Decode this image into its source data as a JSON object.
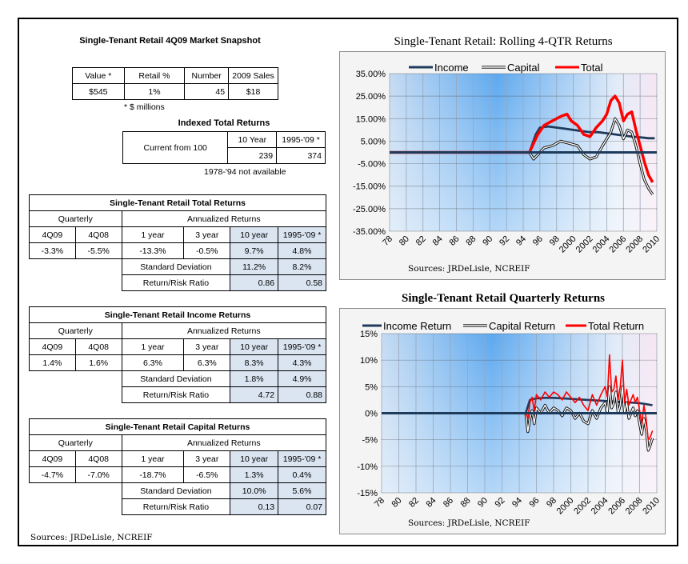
{
  "snapshot": {
    "title": "Single-Tenant Retail 4Q09 Market Snapshot",
    "headers": [
      "Value *",
      "Retail %",
      "Number",
      "2009 Sales"
    ],
    "values": [
      "$545",
      "1%",
      "45",
      "$18"
    ],
    "footnote": "* $ millions"
  },
  "indexed": {
    "title": "Indexed Total Returns",
    "label": "Current from 100",
    "headers": [
      "10 Year",
      "1995-'09 *"
    ],
    "values": [
      "239",
      "374"
    ],
    "note": "1978-'94 not available"
  },
  "returns_tables": [
    {
      "title": "Single-Tenant Retail Total Returns",
      "quarterly_label": "Quarterly",
      "annualized_label": "Annualized Returns",
      "period_headers": [
        "4Q09",
        "4Q08",
        "1 year",
        "3 year",
        "10 year",
        "1995-'09 *"
      ],
      "period_values": [
        "-3.3%",
        "-5.5%",
        "-13.3%",
        "-0.5%",
        "9.7%",
        "4.8%"
      ],
      "std_label": "Standard Deviation",
      "std_values": [
        "11.2%",
        "8.2%"
      ],
      "ratio_label": "Return/Risk Ratio",
      "ratio_values": [
        "0.86",
        "0.58"
      ]
    },
    {
      "title": "Single-Tenant Retail Income Returns",
      "quarterly_label": "Quarterly",
      "annualized_label": "Annualized Returns",
      "period_headers": [
        "4Q09",
        "4Q08",
        "1 year",
        "3 year",
        "10 year",
        "1995-'09 *"
      ],
      "period_values": [
        "1.4%",
        "1.6%",
        "6.3%",
        "6.3%",
        "8.3%",
        "4.3%"
      ],
      "std_label": "Standard Deviation",
      "std_values": [
        "1.8%",
        "4.9%"
      ],
      "ratio_label": "Return/Risk Ratio",
      "ratio_values": [
        "4.72",
        "0.88"
      ]
    },
    {
      "title": "Single-Tenant Retail Capital Returns",
      "quarterly_label": "Quarterly",
      "annualized_label": "Annualized Returns",
      "period_headers": [
        "4Q09",
        "4Q08",
        "1 year",
        "3 year",
        "10 year",
        "1995-'09 *"
      ],
      "period_values": [
        "-4.7%",
        "-7.0%",
        "-18.7%",
        "-6.5%",
        "1.3%",
        "0.4%"
      ],
      "std_label": "Standard Deviation",
      "std_values": [
        "10.0%",
        "5.6%"
      ],
      "ratio_label": "Return/Risk Ratio",
      "ratio_values": [
        "0.13",
        "0.07"
      ]
    }
  ],
  "sources": "Sources: JRDeLisle, NCREIF",
  "colors": {
    "income": "#1f3b5c",
    "capital": "#000000",
    "total": "#ff0000"
  },
  "chart_data": [
    {
      "type": "line",
      "title": "Single-Tenant Retail:  Rolling 4-QTR Returns",
      "source": "Sources: JRDeLisle, NCREIF",
      "x_tick_labels": [
        "78",
        "80",
        "82",
        "84",
        "86",
        "88",
        "90",
        "92",
        "94",
        "96",
        "98",
        "2000",
        "2002",
        "2004",
        "2006",
        "2008",
        "2010"
      ],
      "y_tick_labels": [
        "35.00%",
        "25.00%",
        "15.00%",
        "5.00%",
        "-5.00%",
        "-15.00%",
        "-25.00%",
        "-35.00%"
      ],
      "xlim": [
        1978,
        2010
      ],
      "ylim": [
        -35,
        35
      ],
      "legend": "top",
      "grid": true,
      "series": [
        {
          "name": "Income",
          "x": [
            1978,
            1994.75,
            1995.5,
            1996,
            1997,
            1998,
            1999,
            2000,
            2001,
            2002,
            2003,
            2004,
            2005,
            2006,
            2007,
            2007.75,
            2008.5,
            2009,
            2009.75
          ],
          "y": [
            0,
            0,
            8,
            11,
            11.5,
            11,
            10.5,
            10,
            9.5,
            9,
            9,
            8.5,
            8,
            7.5,
            7,
            6.8,
            6.5,
            6.3,
            6.3
          ]
        },
        {
          "name": "Capital",
          "x": [
            1994.75,
            1995.25,
            1995.75,
            1996.5,
            1997.5,
            1998.5,
            1999.5,
            2000.5,
            2001.25,
            2002,
            2002.75,
            2003.5,
            2004.5,
            2005,
            2005.5,
            2006,
            2006.5,
            2007,
            2007.5,
            2008,
            2008.5,
            2009,
            2009.5
          ],
          "y": [
            0,
            -3,
            -1,
            2,
            3,
            5,
            4,
            3,
            -1,
            -3,
            -2,
            3,
            9,
            15,
            12,
            6,
            10,
            9,
            3,
            -5,
            -12,
            -16,
            -18.7
          ]
        },
        {
          "name": "Total",
          "x": [
            1978,
            1994.75,
            1995.25,
            1995.75,
            1996.5,
            1997.5,
            1998.5,
            1999.25,
            1999.75,
            2000.5,
            2001.25,
            2002,
            2002.75,
            2003.5,
            2004,
            2004.5,
            2005,
            2005.5,
            2006,
            2006.5,
            2007,
            2007.5,
            2008,
            2008.5,
            2009,
            2009.5
          ],
          "y": [
            0,
            0,
            4,
            8,
            12,
            14,
            16,
            17,
            14,
            12,
            8,
            7,
            11,
            14,
            17,
            23,
            25,
            22,
            14,
            17,
            18,
            10,
            3,
            -4,
            -10,
            -13.3
          ]
        }
      ]
    },
    {
      "type": "line",
      "title": "Single-Tenant Retail Quarterly Returns",
      "source": "Sources: JRDeLisle, NCREIF",
      "x_tick_labels": [
        "78",
        "80",
        "82",
        "84",
        "86",
        "88",
        "90",
        "92",
        "94",
        "96",
        "98",
        "2000",
        "2002",
        "2004",
        "2006",
        "2008",
        "2010"
      ],
      "y_tick_labels": [
        "15%",
        "10%",
        "5%",
        "0%",
        "-5%",
        "-10%",
        "-15%"
      ],
      "xlim": [
        1978,
        2010
      ],
      "ylim": [
        -15,
        15
      ],
      "legend": "top",
      "grid": true,
      "series": [
        {
          "name": "Income Return",
          "x": [
            1978,
            1994.75,
            1995.25,
            1996,
            1997,
            1998,
            1999,
            2000,
            2001,
            2002,
            2003,
            2004,
            2005,
            2006,
            2007,
            2008,
            2008.75,
            2009.5
          ],
          "y": [
            0,
            0,
            2.5,
            2.8,
            2.9,
            2.9,
            2.8,
            2.7,
            2.6,
            2.5,
            2.4,
            2.3,
            2.2,
            2.1,
            2.0,
            1.9,
            1.7,
            1.5
          ]
        },
        {
          "name": "Capital Return",
          "x": [
            1994.75,
            1995,
            1995.25,
            1995.5,
            1995.75,
            1996,
            1996.5,
            1997,
            1997.5,
            1998,
            1998.5,
            1999,
            1999.5,
            2000,
            2000.5,
            2001,
            2001.5,
            2002,
            2002.5,
            2003,
            2003.5,
            2004,
            2004.25,
            2004.5,
            2004.75,
            2005,
            2005.25,
            2005.5,
            2005.75,
            2006,
            2006.25,
            2006.5,
            2006.75,
            2007,
            2007.25,
            2007.5,
            2007.75,
            2008,
            2008.25,
            2008.5,
            2008.75,
            2009,
            2009.25,
            2009.5
          ],
          "y": [
            0,
            -3.5,
            -1,
            0.5,
            -2,
            1,
            0,
            1.5,
            0,
            1,
            0.5,
            -0.5,
            1,
            0.5,
            -1,
            0,
            -1.5,
            -2,
            0.5,
            -1,
            1,
            2,
            0,
            5,
            1,
            2,
            4,
            0,
            1.5,
            5,
            0,
            2,
            -1,
            0,
            1,
            -0.5,
            0.5,
            -2,
            -4,
            -1,
            -3,
            -7,
            -6,
            -4.7
          ]
        },
        {
          "name": "Total Return",
          "x": [
            1994.75,
            1995,
            1995.25,
            1995.5,
            1995.75,
            1996,
            1996.5,
            1997,
            1997.5,
            1998,
            1998.5,
            1999,
            1999.5,
            2000,
            2000.5,
            2001,
            2001.5,
            2002,
            2002.5,
            2003,
            2003.5,
            2004,
            2004.25,
            2004.5,
            2004.75,
            2005,
            2005.25,
            2005.5,
            2005.75,
            2006,
            2006.25,
            2006.5,
            2006.75,
            2007,
            2007.25,
            2007.5,
            2007.75,
            2008,
            2008.25,
            2008.5,
            2008.75,
            2009,
            2009.25,
            2009.5
          ],
          "y": [
            0,
            -1,
            2,
            3,
            0.5,
            3.5,
            2.5,
            4,
            3,
            4,
            3.5,
            2.5,
            4,
            3,
            2,
            3,
            1.5,
            0.5,
            3.5,
            1.5,
            3.5,
            5,
            3,
            11,
            4,
            4.5,
            7,
            2.5,
            5,
            10,
            2,
            4.5,
            1.5,
            2.5,
            3.5,
            2,
            3,
            0.5,
            -2,
            1.5,
            -1,
            -5,
            -4.5,
            -3.3
          ]
        }
      ]
    }
  ]
}
